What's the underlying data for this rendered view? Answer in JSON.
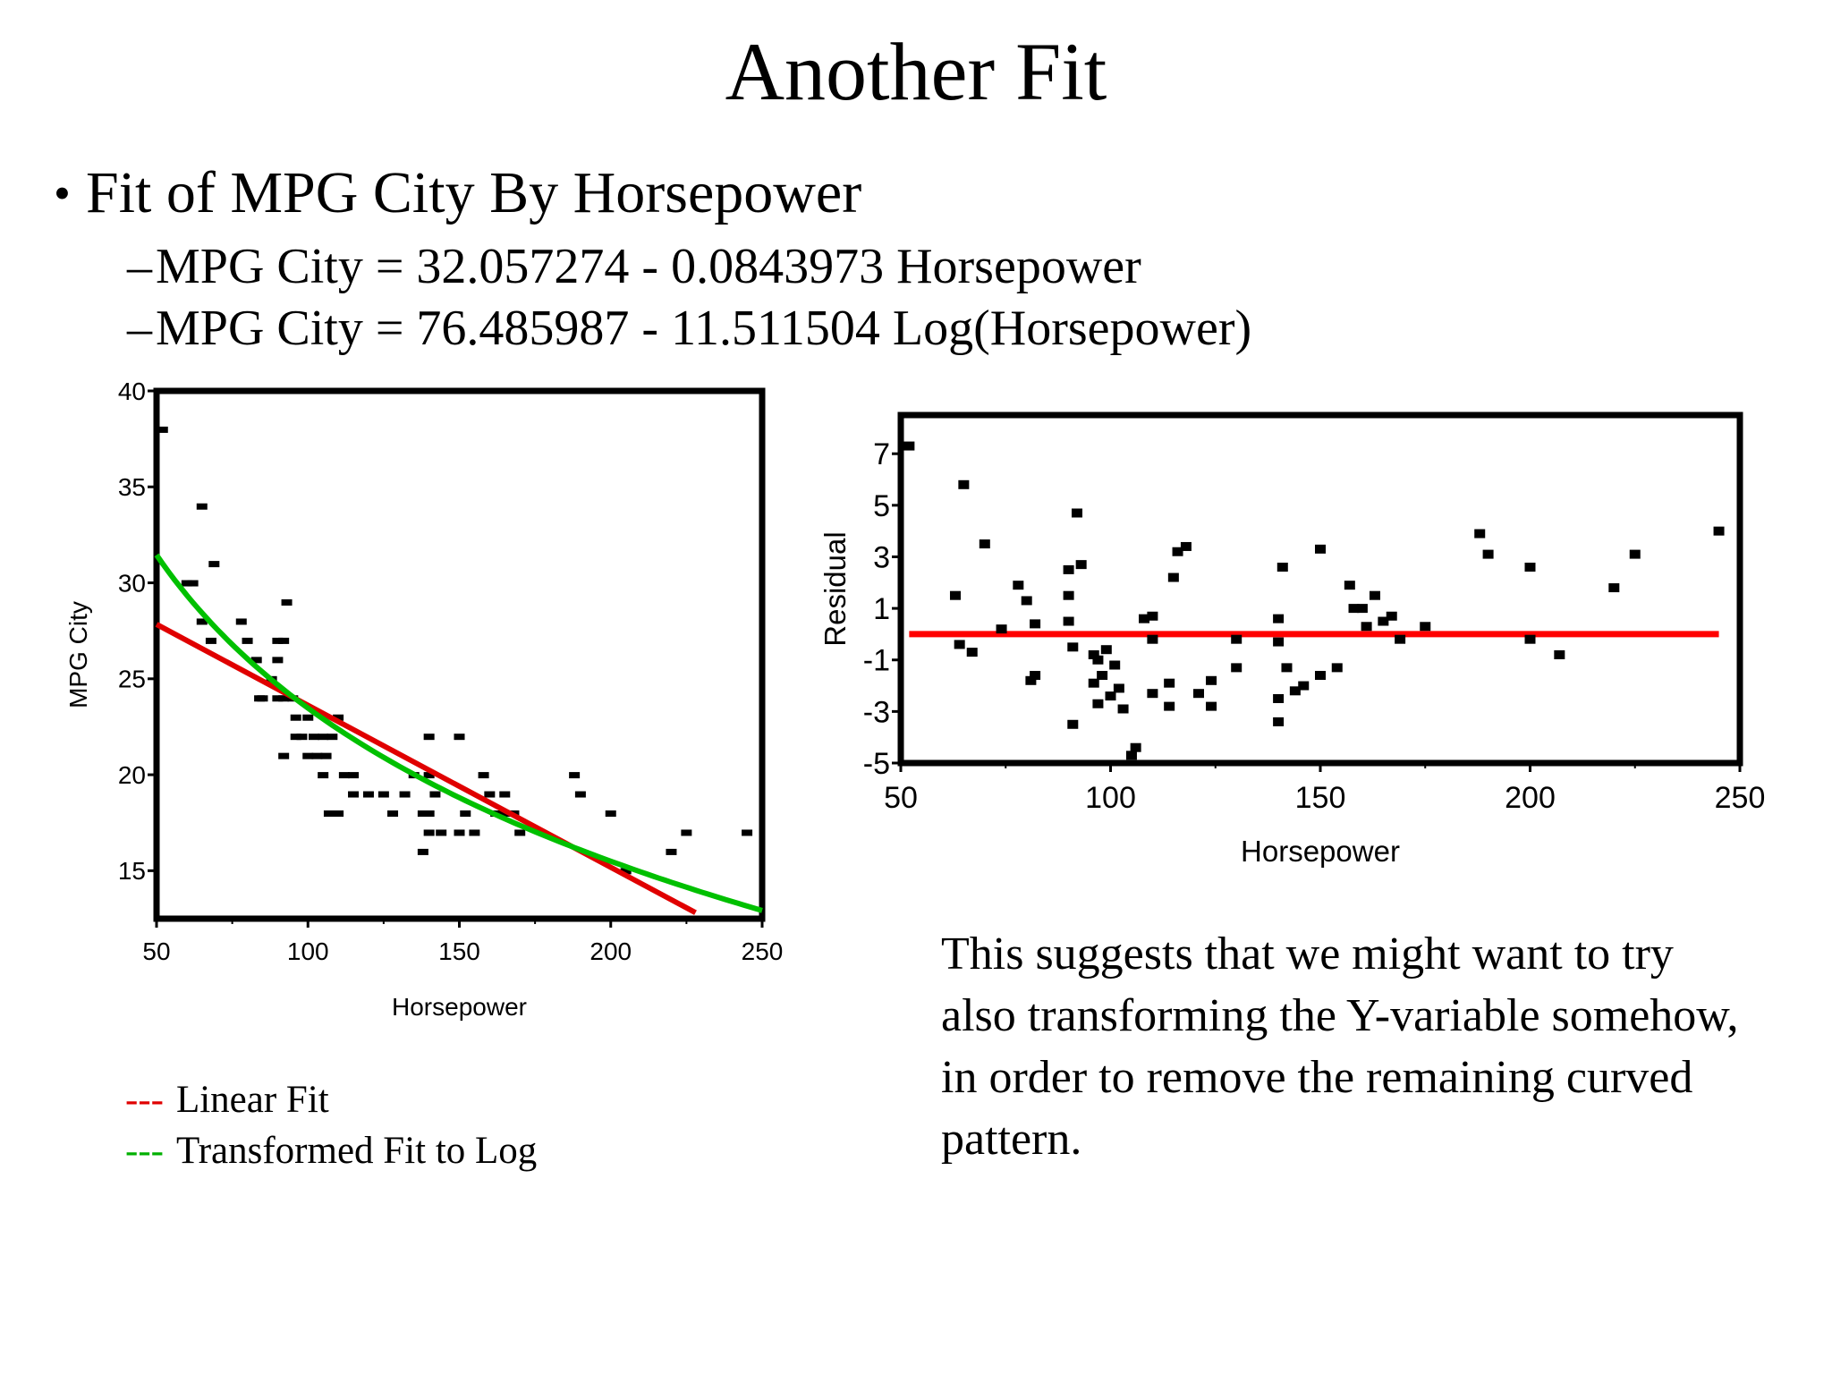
{
  "slide": {
    "title": "Another Fit",
    "bullet": "Fit of MPG City By Horsepower",
    "sub_items": [
      "MPG City = 32.057274 - 0.0843973 Horsepower",
      "MPG City = 76.485987 - 11.511504 Log(Horsepower)"
    ],
    "sub_dash": "–",
    "legend": [
      {
        "mark": "---",
        "label": "Linear Fit",
        "color": "#e00000"
      },
      {
        "mark": "---",
        "label": "Transformed Fit to Log",
        "color": "#00b000"
      }
    ],
    "note": "This suggests that we might want to try also transforming the Y-variable somehow, in order to remove the remaining curved pattern."
  },
  "chart_data": [
    {
      "type": "scatter",
      "xlabel": "Horsepower",
      "ylabel": "MPG City",
      "xlim": [
        50,
        250
      ],
      "ylim": [
        12.5,
        40
      ],
      "xticks": [
        50,
        100,
        150,
        200,
        250
      ],
      "yticks": [
        15,
        20,
        25,
        30,
        35,
        40
      ],
      "grid": false,
      "points": [
        [
          52,
          38
        ],
        [
          65,
          34
        ],
        [
          69,
          31
        ],
        [
          62,
          30
        ],
        [
          60,
          30
        ],
        [
          65,
          28
        ],
        [
          68,
          27
        ],
        [
          78,
          28
        ],
        [
          80,
          27
        ],
        [
          83,
          26
        ],
        [
          84,
          24
        ],
        [
          85,
          24
        ],
        [
          90,
          27
        ],
        [
          92,
          27
        ],
        [
          90,
          26
        ],
        [
          93,
          29
        ],
        [
          92,
          24
        ],
        [
          95,
          24
        ],
        [
          96,
          23
        ],
        [
          88,
          25
        ],
        [
          90,
          24
        ],
        [
          100,
          23
        ],
        [
          102,
          22
        ],
        [
          105,
          22
        ],
        [
          96,
          22
        ],
        [
          98,
          22
        ],
        [
          110,
          23
        ],
        [
          108,
          22
        ],
        [
          100,
          21
        ],
        [
          103,
          21
        ],
        [
          106,
          21
        ],
        [
          92,
          21
        ],
        [
          105,
          20
        ],
        [
          112,
          20
        ],
        [
          115,
          20
        ],
        [
          107,
          18
        ],
        [
          110,
          18
        ],
        [
          115,
          19
        ],
        [
          120,
          19
        ],
        [
          125,
          19
        ],
        [
          128,
          18
        ],
        [
          132,
          19
        ],
        [
          135,
          20
        ],
        [
          140,
          20
        ],
        [
          142,
          19
        ],
        [
          138,
          18
        ],
        [
          140,
          18
        ],
        [
          140,
          17
        ],
        [
          144,
          17
        ],
        [
          138,
          16
        ],
        [
          140,
          22
        ],
        [
          150,
          22
        ],
        [
          150,
          17
        ],
        [
          155,
          17
        ],
        [
          158,
          20
        ],
        [
          160,
          19
        ],
        [
          165,
          19
        ],
        [
          165,
          18
        ],
        [
          168,
          18
        ],
        [
          170,
          17
        ],
        [
          188,
          20
        ],
        [
          190,
          19
        ],
        [
          200,
          18
        ],
        [
          205,
          15
        ],
        [
          220,
          16
        ],
        [
          225,
          17
        ],
        [
          245,
          17
        ],
        [
          152,
          18
        ],
        [
          162,
          18
        ]
      ],
      "series": [
        {
          "name": "Linear Fit",
          "equation": "MPG City = 32.057274 - 0.0843973 Horsepower",
          "x_range": [
            50,
            228
          ],
          "color": "#e00000"
        },
        {
          "name": "Transformed Fit to Log",
          "equation": "MPG City = 76.485987 - 11.511504 Log(Horsepower)",
          "x_range": [
            50,
            250
          ],
          "color": "#00c000"
        }
      ]
    },
    {
      "type": "scatter",
      "xlabel": "Horsepower",
      "ylabel": "Residual",
      "xlim": [
        50,
        250
      ],
      "ylim": [
        -5,
        8.5
      ],
      "xticks": [
        50,
        100,
        150,
        200,
        250
      ],
      "yticks": [
        -5,
        -3,
        -1,
        1,
        3,
        5,
        7
      ],
      "grid": false,
      "reference_line": {
        "y": 0,
        "x_range": [
          52,
          245
        ],
        "color": "#ff0000"
      },
      "points": [
        [
          52,
          7.3
        ],
        [
          63,
          1.5
        ],
        [
          64,
          -0.4
        ],
        [
          65,
          5.8
        ],
        [
          67,
          -0.7
        ],
        [
          70,
          3.5
        ],
        [
          74,
          0.2
        ],
        [
          78,
          1.9
        ],
        [
          80,
          1.3
        ],
        [
          81,
          -1.8
        ],
        [
          82,
          -1.6
        ],
        [
          82,
          0.4
        ],
        [
          90,
          1.5
        ],
        [
          90,
          2.5
        ],
        [
          90,
          0.5
        ],
        [
          91,
          -3.5
        ],
        [
          91,
          -0.5
        ],
        [
          92,
          4.7
        ],
        [
          93,
          2.7
        ],
        [
          96,
          -0.8
        ],
        [
          96,
          -1.9
        ],
        [
          97,
          -2.7
        ],
        [
          97,
          -1.0
        ],
        [
          98,
          -1.6
        ],
        [
          99,
          -0.6
        ],
        [
          100,
          -2.4
        ],
        [
          101,
          -1.2
        ],
        [
          102,
          -2.1
        ],
        [
          103,
          -2.9
        ],
        [
          105,
          -4.7
        ],
        [
          106,
          -4.4
        ],
        [
          108,
          0.6
        ],
        [
          110,
          0.7
        ],
        [
          110,
          -0.2
        ],
        [
          110,
          -2.3
        ],
        [
          114,
          -1.9
        ],
        [
          114,
          -2.8
        ],
        [
          115,
          2.2
        ],
        [
          116,
          3.2
        ],
        [
          118,
          3.4
        ],
        [
          121,
          -2.3
        ],
        [
          124,
          -2.8
        ],
        [
          124,
          -1.8
        ],
        [
          130,
          -0.2
        ],
        [
          130,
          -1.3
        ],
        [
          140,
          0.6
        ],
        [
          140,
          -0.3
        ],
        [
          140,
          -2.5
        ],
        [
          140,
          -3.4
        ],
        [
          141,
          2.6
        ],
        [
          142,
          -1.3
        ],
        [
          144,
          -2.2
        ],
        [
          146,
          -2.0
        ],
        [
          150,
          3.3
        ],
        [
          150,
          -1.6
        ],
        [
          154,
          -1.3
        ],
        [
          157,
          1.9
        ],
        [
          158,
          1.0
        ],
        [
          160,
          1.0
        ],
        [
          161,
          0.3
        ],
        [
          163,
          1.5
        ],
        [
          165,
          0.5
        ],
        [
          167,
          0.7
        ],
        [
          169,
          -0.2
        ],
        [
          175,
          0.3
        ],
        [
          188,
          3.9
        ],
        [
          190,
          3.1
        ],
        [
          200,
          2.6
        ],
        [
          200,
          -0.2
        ],
        [
          207,
          -0.8
        ],
        [
          220,
          1.8
        ],
        [
          225,
          3.1
        ],
        [
          245,
          4.0
        ]
      ]
    }
  ]
}
